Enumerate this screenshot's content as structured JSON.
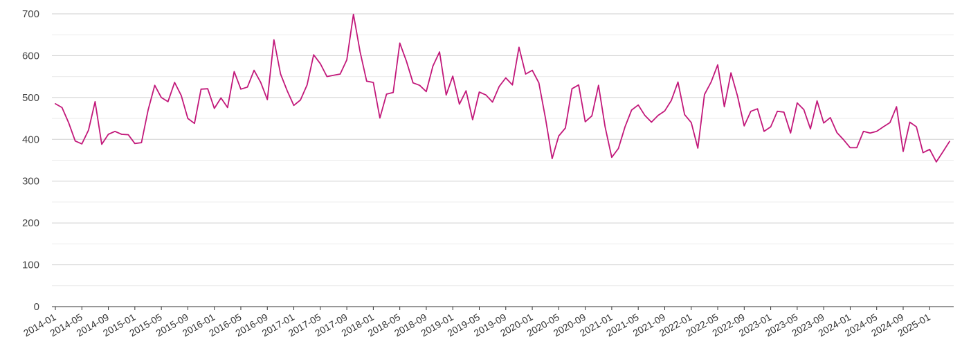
{
  "chart_data": {
    "type": "line",
    "title": "",
    "xlabel": "",
    "ylabel": "",
    "ylim": [
      0,
      700
    ],
    "grid": true,
    "legend": "none",
    "yticks": [
      0,
      100,
      200,
      300,
      400,
      500,
      600,
      700
    ],
    "xtick_labels": [
      "2014-01",
      "2014-05",
      "2014-09",
      "2015-01",
      "2015-05",
      "2015-09",
      "2016-01",
      "2016-05",
      "2016-09",
      "2017-01",
      "2017-05",
      "2017-09",
      "2018-01",
      "2018-05",
      "2018-09",
      "2019-01",
      "2019-05",
      "2019-09",
      "2020-01",
      "2020-05",
      "2020-09",
      "2021-01",
      "2021-05",
      "2021-09",
      "2022-01",
      "2022-05",
      "2022-09",
      "2023-01",
      "2023-05",
      "2023-09",
      "2024-01",
      "2024-05",
      "2024-09",
      "2025-01"
    ],
    "x_start": "2014-01",
    "x_end": "2025-04",
    "line_color": "#c2187a",
    "series": [
      {
        "values": [
          485,
          476,
          440,
          396,
          389,
          422,
          490,
          388,
          412,
          419,
          412,
          411,
          390,
          392,
          470,
          529,
          500,
          490,
          536,
          505,
          450,
          438,
          520,
          521,
          474,
          499,
          476,
          562,
          520,
          525,
          565,
          536,
          495,
          638,
          556,
          516,
          481,
          494,
          530,
          602,
          581,
          550,
          553,
          556,
          590,
          699,
          610,
          539,
          536,
          451,
          508,
          512,
          630,
          587,
          535,
          529,
          514,
          575,
          609,
          506,
          551,
          484,
          516,
          447,
          513,
          506,
          489,
          526,
          547,
          530,
          620,
          556,
          565,
          535,
          450,
          354,
          408,
          427,
          521,
          530,
          442,
          456,
          529,
          430,
          357,
          378,
          430,
          470,
          482,
          457,
          441,
          457,
          468,
          493,
          537,
          459,
          440,
          379,
          507,
          537,
          578,
          478,
          559,
          503,
          432,
          467,
          473,
          419,
          430,
          467,
          465,
          415,
          487,
          471,
          425,
          492,
          439,
          452,
          416,
          399,
          380,
          380,
          419,
          415,
          419,
          430,
          440,
          478,
          371,
          441,
          430,
          368,
          376,
          346,
          370,
          395
        ]
      }
    ]
  }
}
